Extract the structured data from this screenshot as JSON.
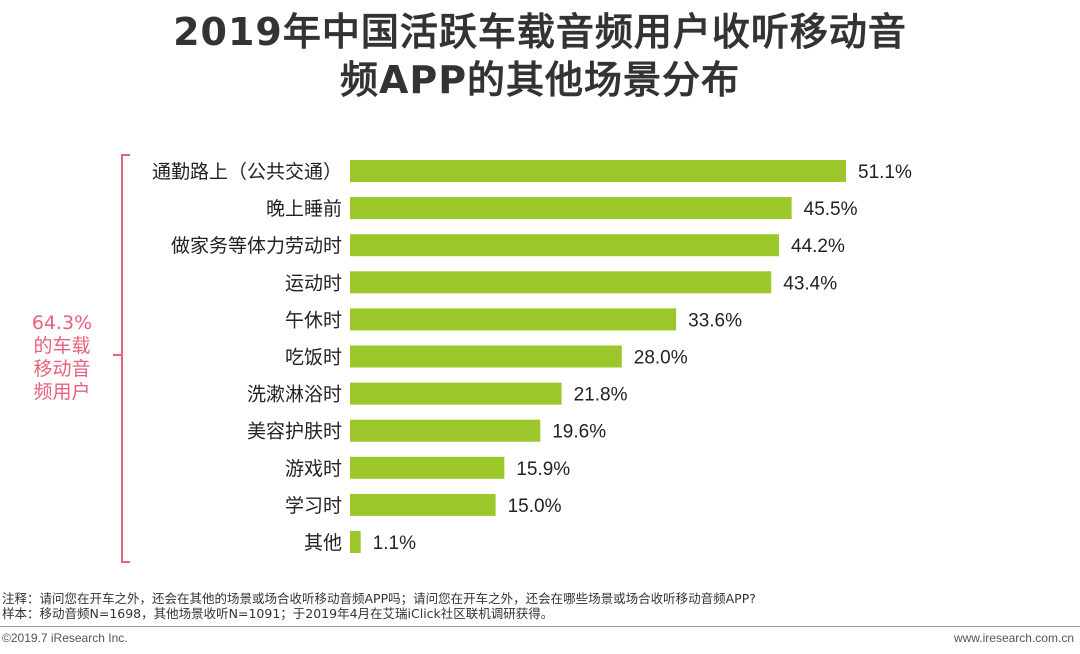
{
  "chart_data": {
    "type": "bar",
    "orientation": "horizontal",
    "title_lines": [
      "2019年中国活跃车载音频用户收听移动音",
      "频APP的其他场景分布"
    ],
    "categories": [
      "通勤路上（公共交通）",
      "晚上睡前",
      "做家务等体力劳动时",
      "运动时",
      "午休时",
      "吃饭时",
      "洗漱淋浴时",
      "美容护肤时",
      "游戏时",
      "学习时",
      "其他"
    ],
    "values": [
      51.1,
      45.5,
      44.2,
      43.4,
      33.6,
      28.0,
      21.8,
      19.6,
      15.9,
      15.0,
      1.1
    ],
    "value_labels": [
      "51.1%",
      "45.5%",
      "44.2%",
      "43.4%",
      "33.6%",
      "28.0%",
      "21.8%",
      "19.6%",
      "15.9%",
      "15.0%",
      "1.1%"
    ],
    "unit": "%",
    "xlim": [
      0,
      60
    ],
    "bar_color": "#9bc72a",
    "annotation": [
      "64.3%",
      "的车载",
      "移动音",
      "频用户"
    ],
    "annotation_color": "#e8617a"
  },
  "notes": [
    "注释：请问您在开车之外，还会在其他的场景或场合收听移动音频APP吗；请问您在开车之外，还会在哪些场景或场合收听移动音频APP?",
    "样本：移动音频N=1698，其他场景收听N=1091；于2019年4月在艾瑞iClick社区联机调研获得。"
  ],
  "footer": {
    "left": "©2019.7 iResearch Inc.",
    "right": "www.iresearch.com.cn"
  }
}
